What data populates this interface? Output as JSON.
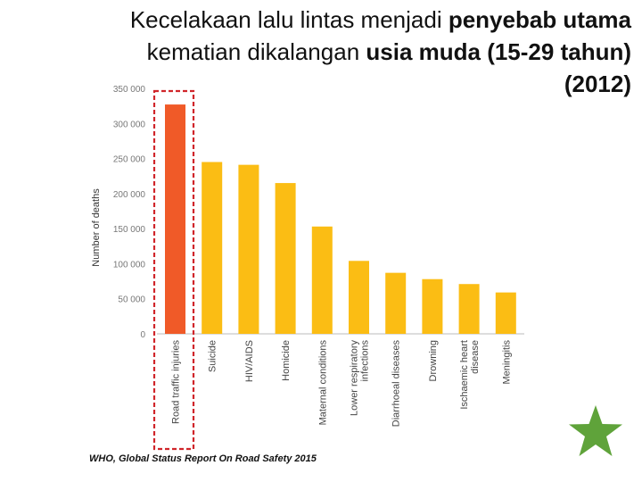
{
  "slide": {
    "title_line1_normal": "Kecelakaan lalu lintas menjadi ",
    "title_line1_bold": "penyebab utama",
    "title_line2_normal": "kematian dikalangan ",
    "title_line2_bold": "usia muda (15-29 tahun)",
    "title_line3_bold": "(2012)",
    "source": "WHO, Global Status Report On Road Safety 2015",
    "star_icon": "green-star-icon",
    "colors": {
      "highlight_bar": "#f05a28",
      "bar": "#fbbd14",
      "highlight_box": "#d0252a",
      "star": "#5fa33a"
    }
  },
  "chart_data": {
    "type": "bar",
    "ylabel": "Number of deaths",
    "xlabel": "",
    "ylim": [
      0,
      350000
    ],
    "yticks": [
      0,
      50000,
      100000,
      150000,
      200000,
      250000,
      300000,
      350000
    ],
    "ytick_labels": [
      "0",
      "50 000",
      "100 000",
      "150 000",
      "200 000",
      "250 000",
      "300 000",
      "350 000"
    ],
    "grid": false,
    "highlighted_category": "Road traffic injuries",
    "categories": [
      [
        "Road traffic injuries"
      ],
      [
        "Suicide"
      ],
      [
        "HIV/AIDS"
      ],
      [
        "Homicide"
      ],
      [
        "Maternal conditions"
      ],
      [
        "Lower respiratory",
        "infections"
      ],
      [
        "Diarrhoeal diseases"
      ],
      [
        "Drowning"
      ],
      [
        "Ischaemic heart",
        "disease"
      ],
      [
        "Meningitis"
      ]
    ],
    "values": [
      327000,
      245000,
      241000,
      215000,
      153000,
      104000,
      87000,
      78000,
      71000,
      59000
    ]
  }
}
